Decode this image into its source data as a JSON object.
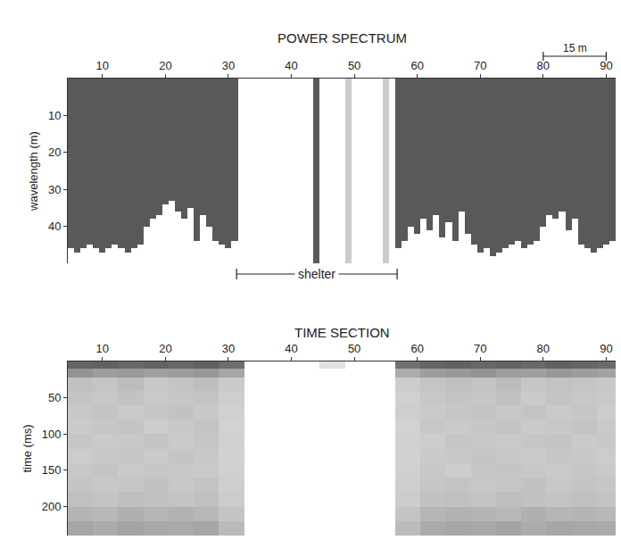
{
  "chart_data": [
    {
      "type": "bar",
      "title": "POWER SPECTRUM",
      "y_label": "wavelength (m)",
      "x": [
        5,
        6,
        7,
        8,
        9,
        10,
        11,
        12,
        13,
        14,
        15,
        16,
        17,
        18,
        19,
        20,
        21,
        22,
        23,
        24,
        25,
        26,
        27,
        28,
        29,
        30,
        31,
        32,
        33,
        34,
        35,
        36,
        37,
        38,
        39,
        40,
        41,
        42,
        43,
        44,
        45,
        46,
        47,
        48,
        49,
        50,
        51,
        52,
        53,
        54,
        55,
        56,
        57,
        58,
        59,
        60,
        61,
        62,
        63,
        64,
        65,
        66,
        67,
        68,
        69,
        70,
        71,
        72,
        73,
        74,
        75,
        76,
        77,
        78,
        79,
        80,
        81,
        82,
        83,
        84,
        85,
        86,
        87,
        88,
        89,
        90,
        91
      ],
      "values": [
        46,
        47,
        46,
        45,
        46,
        47,
        46,
        45,
        46,
        47,
        46,
        45,
        40,
        38,
        37,
        34,
        33,
        36,
        38,
        35,
        44,
        37,
        40,
        44,
        45,
        46,
        44,
        0,
        0,
        0,
        0,
        0,
        0,
        0,
        0,
        0,
        0,
        0,
        0,
        50,
        0,
        0,
        0,
        0,
        50,
        0,
        0,
        0,
        0,
        0,
        50,
        0,
        46,
        44,
        40,
        42,
        38,
        41,
        37,
        43,
        39,
        44,
        36,
        42,
        45,
        47,
        46,
        48,
        47,
        46,
        45,
        44,
        46,
        45,
        44,
        40,
        37,
        38,
        36,
        41,
        38,
        45,
        46,
        47,
        46,
        45,
        44
      ],
      "colors": [
        "#595959",
        "#595959",
        "#595959",
        "#595959",
        "#595959",
        "#595959",
        "#595959",
        "#595959",
        "#595959",
        "#595959",
        "#595959",
        "#595959",
        "#595959",
        "#595959",
        "#595959",
        "#595959",
        "#595959",
        "#595959",
        "#595959",
        "#595959",
        "#595959",
        "#595959",
        "#595959",
        "#595959",
        "#595959",
        "#595959",
        "#595959",
        "#595959",
        "#595959",
        "#595959",
        "#595959",
        "#595959",
        "#595959",
        "#595959",
        "#595959",
        "#595959",
        "#595959",
        "#595959",
        "#595959",
        "#595959",
        "#595959",
        "#595959",
        "#595959",
        "#595959",
        "#cccccc",
        "#595959",
        "#595959",
        "#595959",
        "#595959",
        "#595959",
        "#cccccc",
        "#595959",
        "#595959",
        "#595959",
        "#595959",
        "#595959",
        "#595959",
        "#595959",
        "#595959",
        "#595959",
        "#595959",
        "#595959",
        "#595959",
        "#595959",
        "#595959",
        "#595959",
        "#595959",
        "#595959",
        "#595959",
        "#595959",
        "#595959",
        "#595959",
        "#595959",
        "#595959",
        "#595959",
        "#595959",
        "#595959",
        "#595959",
        "#595959",
        "#595959",
        "#595959",
        "#595959",
        "#595959",
        "#595959",
        "#595959",
        "#595959",
        "#595959"
      ],
      "xlim": [
        4.5,
        91.5
      ],
      "xticks": [
        10,
        20,
        30,
        40,
        50,
        60,
        70,
        80,
        90
      ],
      "ylim": [
        50,
        0
      ],
      "yticks": [
        10,
        20,
        30,
        40
      ],
      "grid": false,
      "scale_bar": {
        "text": "15 m",
        "x": [
          80,
          90
        ]
      },
      "annotations": [
        {
          "text": "shelter",
          "x": [
            31.3,
            56.8
          ]
        }
      ]
    },
    {
      "type": "heatmap",
      "title": "TIME SECTION",
      "y_label": "time (ms)",
      "x": [
        6.5,
        10.5,
        14.5,
        18.5,
        22.5,
        26.5,
        30.5,
        34.5,
        38.5,
        42.5,
        46.5,
        50.5,
        54.5,
        58.5,
        62.5,
        66.5,
        70.5,
        74.5,
        78.5,
        82.5,
        86.5,
        90.5
      ],
      "y": [
        5,
        15,
        30,
        50,
        70,
        90,
        110,
        130,
        150,
        170,
        190,
        210,
        230
      ],
      "z": [
        [
          0.78,
          0.8,
          0.76,
          0.79,
          0.77,
          0.8,
          0.74,
          0,
          0,
          0,
          0.15,
          0,
          0,
          0.72,
          0.78,
          0.8,
          0.77,
          0.79,
          0.76,
          0.8,
          0.78,
          0.75
        ],
        [
          0.55,
          0.5,
          0.52,
          0.48,
          0.5,
          0.53,
          0.45,
          0,
          0,
          0,
          0,
          0,
          0,
          0.42,
          0.5,
          0.52,
          0.55,
          0.5,
          0.48,
          0.53,
          0.5,
          0.47
        ],
        [
          0.32,
          0.3,
          0.34,
          0.28,
          0.3,
          0.33,
          0.27,
          0,
          0,
          0,
          0,
          0,
          0,
          0.26,
          0.3,
          0.32,
          0.3,
          0.34,
          0.29,
          0.31,
          0.3,
          0.28
        ],
        [
          0.3,
          0.28,
          0.31,
          0.27,
          0.29,
          0.3,
          0.25,
          0,
          0,
          0,
          0,
          0,
          0,
          0.24,
          0.28,
          0.3,
          0.29,
          0.31,
          0.27,
          0.3,
          0.28,
          0.27
        ],
        [
          0.28,
          0.3,
          0.27,
          0.29,
          0.31,
          0.28,
          0.24,
          0,
          0,
          0,
          0,
          0,
          0,
          0.25,
          0.27,
          0.29,
          0.3,
          0.28,
          0.3,
          0.27,
          0.29,
          0.26
        ],
        [
          0.27,
          0.29,
          0.3,
          0.26,
          0.28,
          0.3,
          0.23,
          0,
          0,
          0,
          0,
          0,
          0,
          0.23,
          0.28,
          0.27,
          0.29,
          0.3,
          0.27,
          0.28,
          0.3,
          0.27
        ],
        [
          0.29,
          0.27,
          0.28,
          0.3,
          0.27,
          0.29,
          0.24,
          0,
          0,
          0,
          0,
          0,
          0,
          0.24,
          0.26,
          0.29,
          0.28,
          0.27,
          0.29,
          0.3,
          0.27,
          0.28
        ],
        [
          0.26,
          0.28,
          0.29,
          0.27,
          0.3,
          0.28,
          0.23,
          0,
          0,
          0,
          0,
          0,
          0,
          0.23,
          0.27,
          0.28,
          0.3,
          0.28,
          0.27,
          0.29,
          0.28,
          0.26
        ],
        [
          0.28,
          0.3,
          0.27,
          0.29,
          0.28,
          0.27,
          0.24,
          0,
          0,
          0,
          0,
          0,
          0,
          0.24,
          0.28,
          0.26,
          0.29,
          0.3,
          0.28,
          0.27,
          0.29,
          0.27
        ],
        [
          0.3,
          0.28,
          0.29,
          0.31,
          0.28,
          0.3,
          0.25,
          0,
          0,
          0,
          0,
          0,
          0,
          0.25,
          0.29,
          0.3,
          0.28,
          0.29,
          0.31,
          0.28,
          0.3,
          0.29
        ],
        [
          0.32,
          0.3,
          0.33,
          0.31,
          0.3,
          0.32,
          0.26,
          0,
          0,
          0,
          0,
          0,
          0,
          0.26,
          0.31,
          0.32,
          0.3,
          0.33,
          0.31,
          0.3,
          0.32,
          0.3
        ],
        [
          0.38,
          0.36,
          0.4,
          0.37,
          0.39,
          0.36,
          0.3,
          0,
          0,
          0,
          0,
          0,
          0,
          0.3,
          0.37,
          0.39,
          0.38,
          0.36,
          0.4,
          0.37,
          0.38,
          0.36
        ],
        [
          0.45,
          0.42,
          0.46,
          0.44,
          0.43,
          0.45,
          0.35,
          0,
          0,
          0,
          0,
          0,
          0,
          0.34,
          0.43,
          0.45,
          0.44,
          0.46,
          0.42,
          0.45,
          0.44,
          0.43
        ]
      ],
      "zlim": [
        0,
        1
      ],
      "colors": [
        "#ffffff",
        "#3a3a3a"
      ],
      "xlim": [
        4.5,
        91.5
      ],
      "xticks": [
        10,
        20,
        30,
        40,
        50,
        60,
        70,
        80,
        90
      ],
      "ylim": [
        240,
        0
      ],
      "yticks": [
        50,
        100,
        150,
        200
      ],
      "grid": false
    }
  ]
}
